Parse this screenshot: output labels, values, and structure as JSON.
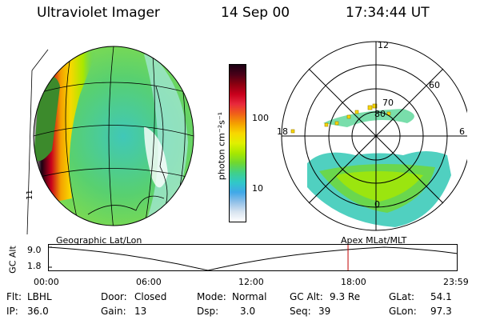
{
  "header": {
    "instrument": "Ultraviolet Imager",
    "date": "14 Sep 00",
    "time": "17:34:44 UT"
  },
  "colorbar": {
    "unit_label": "photon cm⁻²s⁻¹",
    "ticks": [
      "100",
      "10"
    ],
    "colors": [
      "#1a0012",
      "#4a0018",
      "#8c0010",
      "#c8001c",
      "#e8283c",
      "#f06018",
      "#f4a000",
      "#f8d800",
      "#e0f000",
      "#a8e800",
      "#70d830",
      "#40d088",
      "#30c8c8",
      "#40a8e8",
      "#90c0e8",
      "#d8e4f0",
      "#ffffff"
    ]
  },
  "polar": {
    "lat_labels": [
      "80",
      "70",
      "60"
    ],
    "mlt_labels": {
      "top": "12",
      "left": "18",
      "right": "6",
      "bottom": "0"
    }
  },
  "globe": {
    "side_label": "11"
  },
  "timeline": {
    "left_caption": "Geographic Lat/Lon",
    "right_caption": "Apex  MLat/MLT",
    "axis_title": "GC Alt",
    "y_ticks": [
      "9.0",
      "1.8"
    ],
    "x_ticks": [
      "00:00",
      "06:00",
      "12:00",
      "18:00",
      "23:59"
    ],
    "marker_time_hours": 17.58,
    "marker_color": "#c00000"
  },
  "info": {
    "flt_label": "Flt:",
    "flt_value": "LBHL",
    "ip_label": "IP:",
    "ip_value": "36.0",
    "door_label": "Door:",
    "door_value": "Closed",
    "gain_label": "Gain:",
    "gain_value": "13",
    "mode_label": "Mode:",
    "mode_value": "Normal",
    "dsp_label": "Dsp:",
    "dsp_value": "3.0",
    "gcalt_label": "GC Alt:",
    "gcalt_value": "9.3 Re",
    "seq_label": "Seq:",
    "seq_value": "39",
    "glat_label": "GLat:",
    "glat_value": "54.1",
    "glon_label": "GLon:",
    "glon_value": "97.3"
  }
}
